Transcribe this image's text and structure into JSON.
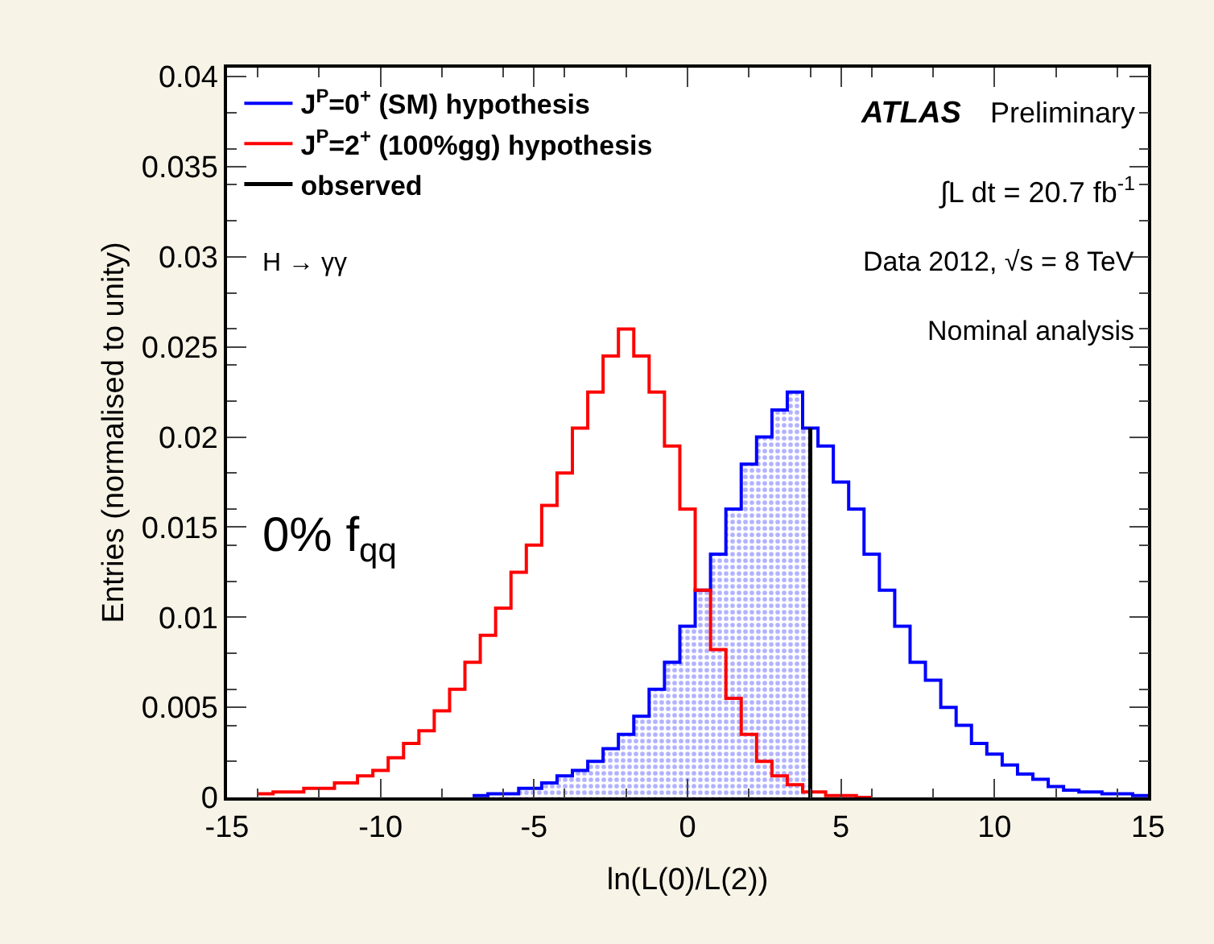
{
  "chart_data": {
    "type": "step",
    "xlabel": "ln(L(0)/L(2))",
    "ylabel": "Entries (normalised to unity)",
    "xlim": [
      -15,
      15
    ],
    "xticks": [
      -15,
      -10,
      -5,
      0,
      5,
      10,
      15
    ],
    "ylim": [
      0,
      0.0405
    ],
    "yticks": [
      0,
      0.005,
      0.01,
      0.015,
      0.02,
      0.025,
      0.03,
      0.035,
      0.04
    ],
    "legend": "top left",
    "marker": "none",
    "line_style": "solid",
    "series": [
      {
        "name": "J$^{P}$=0$^{+}$ (SM) hypothesis",
        "color": "#0000ff",
        "x": [
          -7,
          -6,
          -5,
          -4.5,
          -4,
          -3.5,
          -3,
          -2.5,
          -2,
          -1.5,
          -1,
          -0.5,
          0,
          0.5,
          1,
          1.5,
          2,
          2.5,
          3,
          3.5,
          4,
          4.5,
          5,
          5.5,
          6,
          6.5,
          7,
          7.5,
          8,
          8.5,
          9,
          9.5,
          10,
          10.5,
          11,
          11.5,
          12,
          12.5,
          13,
          14,
          15
        ],
        "values": [
          0.0001,
          0.0002,
          0.0005,
          0.0008,
          0.0012,
          0.0015,
          0.002,
          0.0027,
          0.0035,
          0.0045,
          0.006,
          0.0075,
          0.0095,
          0.0115,
          0.0135,
          0.016,
          0.0185,
          0.02,
          0.0215,
          0.0225,
          0.0205,
          0.0195,
          0.0175,
          0.016,
          0.0135,
          0.0115,
          0.0095,
          0.0075,
          0.0065,
          0.005,
          0.004,
          0.003,
          0.0024,
          0.0018,
          0.0013,
          0.001,
          0.0006,
          0.0004,
          0.0003,
          0.0002,
          0.0001
        ]
      },
      {
        "name": "J$^{P}$=2$^{+}$ (100%gg) hypothesis",
        "color": "#ff0000",
        "x": [
          -14,
          -13,
          -12,
          -11,
          -10.5,
          -10,
          -9.5,
          -9,
          -8.5,
          -8,
          -7.5,
          -7,
          -6.5,
          -6,
          -5.5,
          -5,
          -4.5,
          -4,
          -3.5,
          -3,
          -2.5,
          -2,
          -1.5,
          -1,
          -0.5,
          0,
          0.5,
          1,
          1.5,
          2,
          2.5,
          3,
          3.5,
          4,
          5,
          6
        ],
        "values": [
          0.0002,
          0.0003,
          0.0005,
          0.0008,
          0.0012,
          0.0015,
          0.0022,
          0.003,
          0.0037,
          0.0048,
          0.006,
          0.0075,
          0.009,
          0.0105,
          0.0125,
          0.014,
          0.0162,
          0.018,
          0.0205,
          0.0225,
          0.0245,
          0.026,
          0.0245,
          0.0225,
          0.0195,
          0.016,
          0.0115,
          0.0082,
          0.0055,
          0.0035,
          0.002,
          0.0012,
          0.0007,
          0.0003,
          0.0001,
          0
        ]
      },
      {
        "type": "area",
        "color": "#6666ff",
        "x": [
          -7,
          -6,
          -5,
          -4.5,
          -4,
          -3.5,
          -3,
          -2.5,
          -2,
          -1.5,
          -1,
          -0.5,
          0,
          0.5,
          1,
          1.5,
          2,
          2.5,
          3,
          3.5,
          4
        ],
        "values": [
          0.0001,
          0.0002,
          0.0005,
          0.0008,
          0.0012,
          0.0015,
          0.002,
          0.0027,
          0.0035,
          0.0045,
          0.006,
          0.0075,
          0.0095,
          0.0115,
          0.0135,
          0.016,
          0.0185,
          0.02,
          0.0215,
          0.0225,
          0.0205
        ]
      },
      {
        "type": "line",
        "name": "observed",
        "color": "#000000",
        "x": [
          4,
          4
        ],
        "values": [
          0,
          0.0205
        ]
      }
    ],
    "annotations": [
      "ATLAS",
      "Preliminary",
      "∫L dt = 20.7 fb$^{-1}$",
      "Data 2012, √s = 8 TeV",
      "Nominal analysis",
      "H → γγ",
      "0% f$_{qq}$"
    ]
  }
}
